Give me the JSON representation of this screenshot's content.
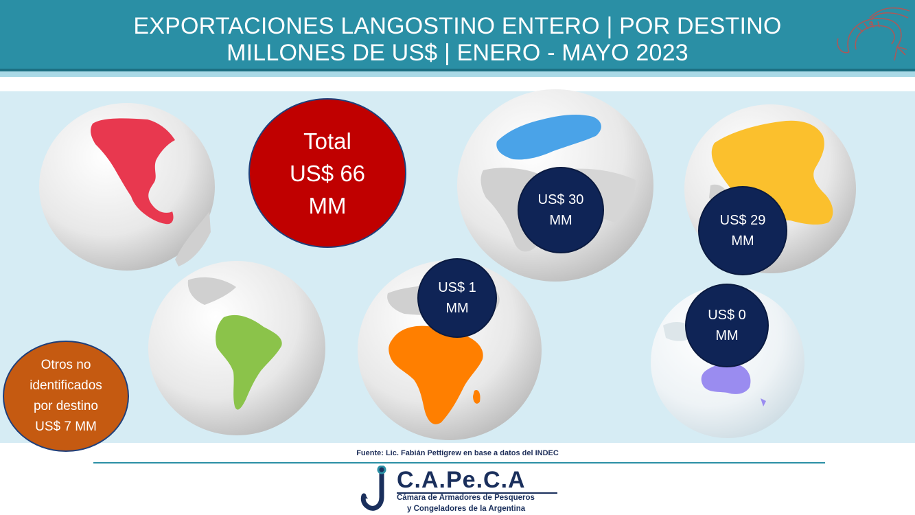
{
  "header": {
    "title_line1": "EXPORTACIONES LANGOSTINO ENTERO | POR DESTINO",
    "title_line2": "MILLONES DE US$ | ENERO - MAYO 2023"
  },
  "total": {
    "line1": "Total",
    "line2": "US$ 66",
    "line3": "MM"
  },
  "regions": [
    {
      "region": "north-america",
      "color": "#e8384f"
    },
    {
      "region": "south-america",
      "color": "#8bc34a"
    },
    {
      "region": "europe",
      "color": "#4aa3e8",
      "line1": "US$ 30",
      "line2": "MM"
    },
    {
      "region": "asia",
      "color": "#fbc02d",
      "line1": "US$ 29",
      "line2": "MM"
    },
    {
      "region": "africa",
      "color": "#ff7f00",
      "line1": "US$ 1",
      "line2": "MM"
    },
    {
      "region": "oceania",
      "color": "#9a8cf0",
      "line1": "US$ 0",
      "line2": "MM"
    }
  ],
  "otros": {
    "line1": "Otros no",
    "line2": "identificados",
    "line3": "por destino",
    "line4": "US$ 7 MM"
  },
  "source": "Fuente: Lic. Fabián Pettigrew en base a datos del INDEC",
  "logo": {
    "name": "C.A.Pe.C.A",
    "sub1": "Cámara de Armadores de Pesqueros",
    "sub2": "y Congeladores de la Argentina"
  },
  "colors": {
    "header_bg": "#2a8fa5",
    "map_bg": "#d6ecf4",
    "total_bubble": "#c00000",
    "value_bubble": "#0f2456",
    "otros_bubble": "#c55a11"
  }
}
